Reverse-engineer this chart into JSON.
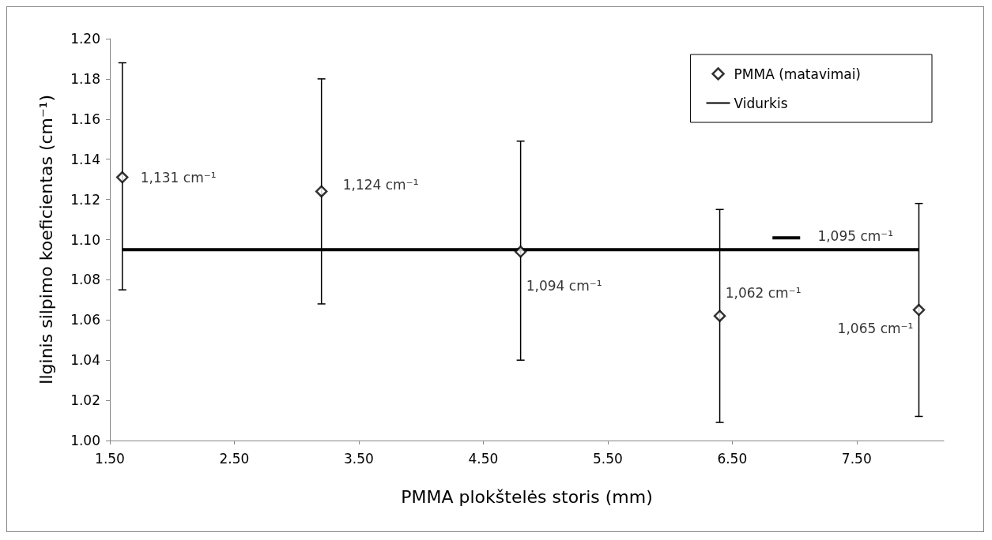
{
  "chart_data": {
    "type": "scatter",
    "xlabel": "PMMA plokštelės storis (mm)",
    "ylabel": "Ilginis silpimo koeficientas (cm⁻¹)",
    "xlim": [
      1.5,
      8.2
    ],
    "xticks": [
      {
        "value": 1.5,
        "label": "1.50"
      },
      {
        "value": 2.5,
        "label": "2.50"
      },
      {
        "value": 3.5,
        "label": "3.50"
      },
      {
        "value": 4.5,
        "label": "4.50"
      },
      {
        "value": 5.5,
        "label": "5.50"
      },
      {
        "value": 6.5,
        "label": "6.50"
      },
      {
        "value": 7.5,
        "label": "7.50"
      }
    ],
    "ylim": [
      1.0,
      1.2
    ],
    "yticks": [
      {
        "value": 1.0,
        "label": "1.00"
      },
      {
        "value": 1.02,
        "label": "1.02"
      },
      {
        "value": 1.04,
        "label": "1.04"
      },
      {
        "value": 1.06,
        "label": "1.06"
      },
      {
        "value": 1.08,
        "label": "1.08"
      },
      {
        "value": 1.1,
        "label": "1.10"
      },
      {
        "value": 1.12,
        "label": "1.12"
      },
      {
        "value": 1.14,
        "label": "1.14"
      },
      {
        "value": 1.16,
        "label": "1.16"
      },
      {
        "value": 1.18,
        "label": "1.18"
      },
      {
        "value": 1.2,
        "label": "1.20"
      }
    ],
    "grid": false,
    "legend": "top right",
    "series": [
      {
        "name": "PMMA (matavimai)",
        "marker": "diamond",
        "color": "#000000",
        "x": [
          1.6,
          3.2,
          4.8,
          6.4,
          8.0
        ],
        "values": [
          1.131,
          1.124,
          1.094,
          1.062,
          1.065
        ],
        "errors": [
          [
            1.075,
            1.188
          ],
          [
            1.068,
            1.18
          ],
          [
            1.04,
            1.149
          ],
          [
            1.009,
            1.115
          ],
          [
            1.012,
            1.118
          ]
        ]
      },
      {
        "name": "Vidurkis",
        "type": "line",
        "marker": "none",
        "color": "#000000",
        "x": [
          1.6,
          8.0
        ],
        "values": [
          1.095,
          1.095
        ]
      }
    ],
    "annotations": [
      {
        "text": "1,131 cm⁻¹",
        "x": 1.6,
        "y": 1.131
      },
      {
        "text": "1,124 cm⁻¹",
        "x": 3.2,
        "y": 1.124
      },
      {
        "text": "1,094 cm⁻¹",
        "x": 4.8,
        "y": 1.094
      },
      {
        "text": "1,062 cm⁻¹",
        "x": 6.4,
        "y": 1.062
      },
      {
        "text": "1,065 cm⁻¹",
        "x": 8.0,
        "y": 1.065
      },
      {
        "text": "1,095 cm⁻¹",
        "x": 7.3,
        "y": 1.095
      }
    ]
  }
}
